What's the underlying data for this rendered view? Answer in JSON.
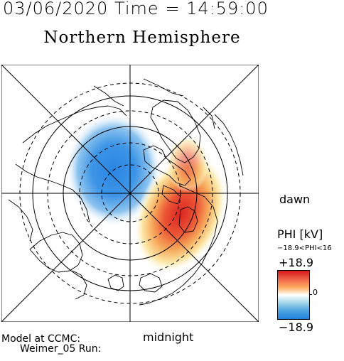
{
  "header": {
    "datetime": "03/06/2020 Time = 14:59:00",
    "title": "Northern Hemisphere"
  },
  "map": {
    "dawn_label": "dawn",
    "midnight_label": "midnight"
  },
  "colorbar": {
    "title": "PHI [kV]",
    "range_text": "−18.9<PHI<16",
    "max_label": "+18.9",
    "zero_label": "0",
    "min_label": "−18.9",
    "colors": {
      "positive": "#d7191c",
      "negative": "#2180e0"
    }
  },
  "footer": {
    "line1": "Model at CCMC:",
    "line2": "Weimer_05 Run:"
  }
}
